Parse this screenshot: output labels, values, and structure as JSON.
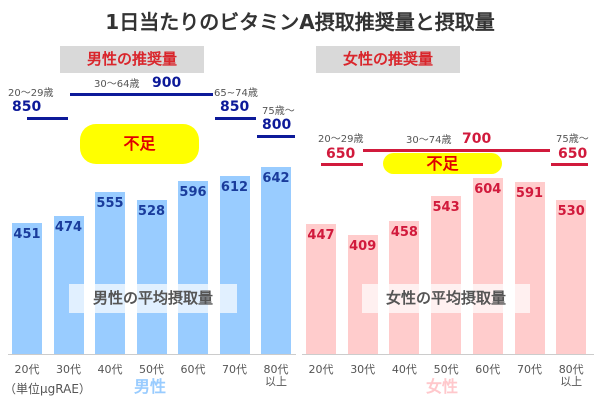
{
  "title": "1日当たりのビタミンA摂取推奨量と摂取量",
  "unit": "（単位μgRAE）",
  "chart_data": [
    {
      "type": "bar",
      "panel": "男性",
      "header": "男性の推奨量",
      "series_label": "男性の平均摂取量",
      "shortfall_label": "不足",
      "categories": [
        "20代",
        "30代",
        "40代",
        "50代",
        "60代",
        "70代",
        "80代 以上"
      ],
      "values": [
        451,
        474,
        555,
        528,
        596,
        612,
        642
      ],
      "bar_color": "#99ccff",
      "value_color": "#1a3c9c",
      "recommended": [
        {
          "age": "20～29歳",
          "value": 850
        },
        {
          "age": "30～64歳",
          "value": 900
        },
        {
          "age": "65~74歳",
          "value": 850
        },
        {
          "age": "75歳～",
          "value": 800
        }
      ],
      "line_color": "#0d1a99"
    },
    {
      "type": "bar",
      "panel": "女性",
      "header": "女性の推奨量",
      "series_label": "女性の平均摂取量",
      "shortfall_label": "不足",
      "categories": [
        "20代",
        "30代",
        "40代",
        "50代",
        "60代",
        "70代",
        "80代 以上"
      ],
      "values": [
        447,
        409,
        458,
        543,
        604,
        591,
        530
      ],
      "bar_color": "#ffcccc",
      "value_color": "#d11a3c",
      "recommended": [
        {
          "age": "20～29歳",
          "value": 650
        },
        {
          "age": "30～74歳",
          "value": 700
        },
        {
          "age": "75歳～",
          "value": 650
        }
      ],
      "line_color": "#d11a3c"
    }
  ]
}
